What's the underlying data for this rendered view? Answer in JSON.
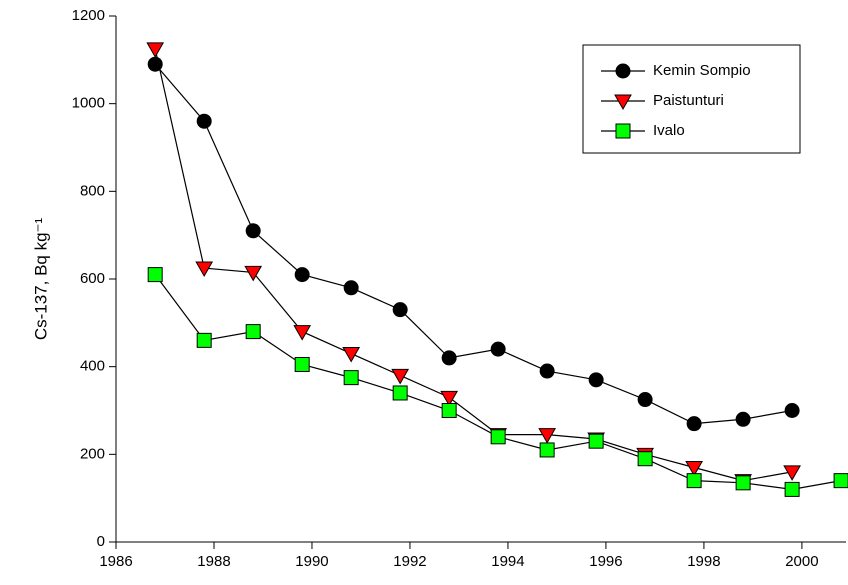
{
  "chart_data": {
    "type": "line",
    "ylabel": "Cs-137, Bq kg⁻¹",
    "x": [
      1986.8,
      1987.8,
      1988.8,
      1989.8,
      1990.8,
      1991.8,
      1992.8,
      1993.8,
      1994.8,
      1995.8,
      1996.8,
      1997.8,
      1998.8,
      1999.8,
      2000.8
    ],
    "xlim": [
      1986,
      2000.9
    ],
    "xticks": [
      1986,
      1988,
      1990,
      1992,
      1994,
      1996,
      1998,
      2000
    ],
    "ylim": [
      0,
      1200
    ],
    "yticks": [
      0,
      200,
      400,
      600,
      800,
      1000,
      1200
    ],
    "legend": "upper-right",
    "series": [
      {
        "name": "Kemin Sompio",
        "color": "#000000",
        "marker": "circle",
        "values": [
          1090,
          960,
          710,
          610,
          580,
          530,
          420,
          440,
          390,
          370,
          325,
          270,
          280,
          300,
          null
        ]
      },
      {
        "name": "Paistunturi",
        "color": "#ff0000",
        "marker": "triangle-down",
        "values": [
          1125,
          625,
          615,
          480,
          430,
          380,
          330,
          245,
          245,
          235,
          200,
          170,
          140,
          160,
          null
        ]
      },
      {
        "name": "Ivalo",
        "color": "#00ff00",
        "marker": "square",
        "values": [
          610,
          460,
          480,
          405,
          375,
          340,
          300,
          240,
          210,
          230,
          190,
          140,
          135,
          120,
          140
        ]
      }
    ]
  }
}
